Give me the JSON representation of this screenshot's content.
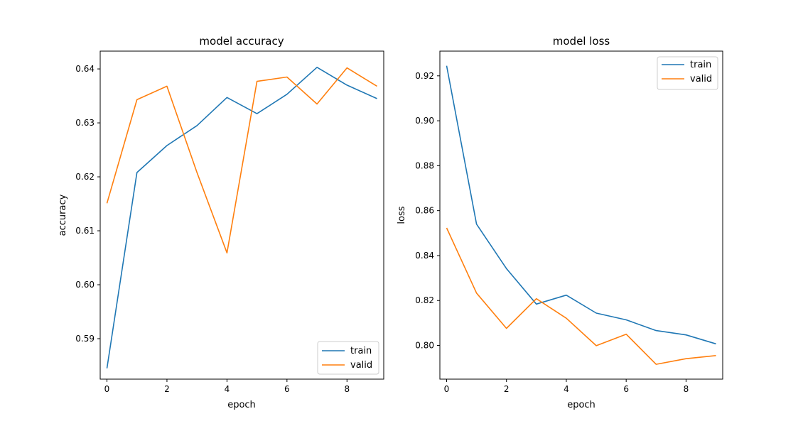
{
  "chart_data": [
    {
      "type": "line",
      "title": "model accuracy",
      "xlabel": "epoch",
      "ylabel": "accuracy",
      "x": [
        0,
        1,
        2,
        3,
        4,
        5,
        6,
        7,
        8,
        9
      ],
      "xlim": [
        -0.225,
        9.225
      ],
      "ylim": [
        0.5825,
        0.6433
      ],
      "xticks": [
        0,
        2,
        4,
        6,
        8
      ],
      "yticks": [
        0.59,
        0.6,
        0.61,
        0.62,
        0.63,
        0.64
      ],
      "ytick_labels": [
        "0.59",
        "0.60",
        "0.61",
        "0.62",
        "0.63",
        "0.64"
      ],
      "legend": "lower-right",
      "grid": false,
      "series": [
        {
          "name": "train",
          "color": "#1f77b4",
          "values": [
            0.5845,
            0.6208,
            0.6258,
            0.6295,
            0.6347,
            0.6317,
            0.6353,
            0.6403,
            0.637,
            0.6345
          ]
        },
        {
          "name": "valid",
          "color": "#ff7f0e",
          "values": [
            0.6151,
            0.6343,
            0.6368,
            0.6208,
            0.6059,
            0.6377,
            0.6385,
            0.6335,
            0.6402,
            0.6368
          ]
        }
      ]
    },
    {
      "type": "line",
      "title": "model loss",
      "xlabel": "epoch",
      "ylabel": "loss",
      "x": [
        0,
        1,
        2,
        3,
        4,
        5,
        6,
        7,
        8,
        9
      ],
      "xlim": [
        -0.225,
        9.225
      ],
      "ylim": [
        0.785,
        0.931
      ],
      "xticks": [
        0,
        2,
        4,
        6,
        8
      ],
      "yticks": [
        0.8,
        0.82,
        0.84,
        0.86,
        0.88,
        0.9,
        0.92
      ],
      "ytick_labels": [
        "0.80",
        "0.82",
        "0.84",
        "0.86",
        "0.88",
        "0.90",
        "0.92"
      ],
      "legend": "top-right",
      "grid": false,
      "series": [
        {
          "name": "train",
          "color": "#1f77b4",
          "values": [
            0.9245,
            0.854,
            0.8342,
            0.8184,
            0.8224,
            0.8144,
            0.8114,
            0.8066,
            0.8047,
            0.8007
          ]
        },
        {
          "name": "valid",
          "color": "#ff7f0e",
          "values": [
            0.8523,
            0.8233,
            0.8076,
            0.8208,
            0.8121,
            0.7999,
            0.805,
            0.7916,
            0.7941,
            0.7955
          ]
        }
      ]
    }
  ]
}
